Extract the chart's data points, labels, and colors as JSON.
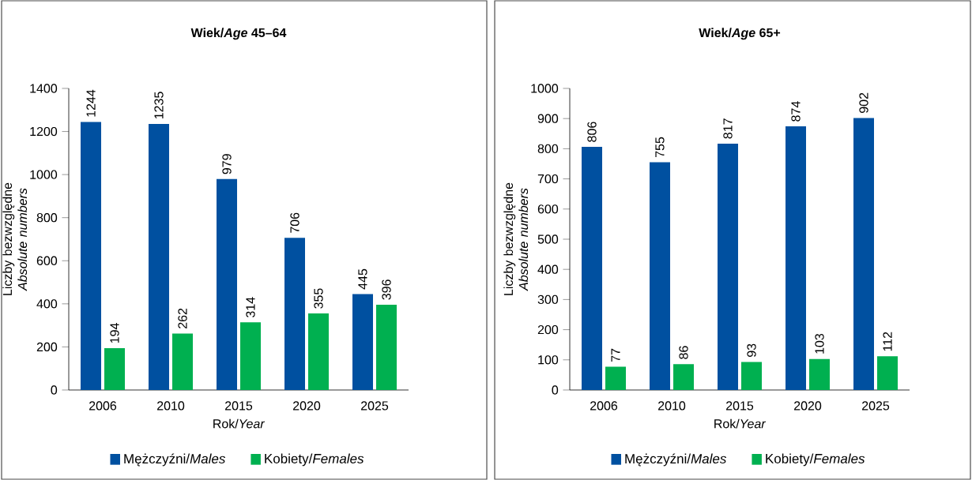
{
  "chart_data": [
    {
      "type": "bar",
      "title": "Wiek/*Age* 45–64",
      "xlabel": "Rok/*Year*",
      "ylabel": "Liczby bezwzględne *Absolute numbers*",
      "categories": [
        "2006",
        "2010",
        "2015",
        "2020",
        "2025"
      ],
      "series": [
        {
          "name": "Mężczyźni/*Males*",
          "color": "#0050a0",
          "values": [
            1244,
            1235,
            979,
            706,
            445
          ]
        },
        {
          "name": "Kobiety/*Females*",
          "color": "#00b050",
          "values": [
            194,
            262,
            314,
            355,
            396
          ]
        }
      ],
      "ylim": [
        0,
        1400
      ],
      "yticks": [
        0,
        200,
        400,
        600,
        800,
        1000,
        1200,
        1400
      ],
      "data_labels": true,
      "legend": "bottom",
      "grid": false
    },
    {
      "type": "bar",
      "title": "Wiek/*Age* 65+",
      "xlabel": "Rok/*Year*",
      "ylabel": "Liczby bezwzględne *Absolute numbers*",
      "categories": [
        "2006",
        "2010",
        "2015",
        "2020",
        "2025"
      ],
      "series": [
        {
          "name": "Mężczyźni/*Males*",
          "color": "#0050a0",
          "values": [
            806,
            755,
            817,
            874,
            902
          ]
        },
        {
          "name": "Kobiety/*Females*",
          "color": "#00b050",
          "values": [
            77,
            86,
            93,
            103,
            112
          ]
        }
      ],
      "ylim": [
        0,
        1000
      ],
      "yticks": [
        0,
        100,
        200,
        300,
        400,
        500,
        600,
        700,
        800,
        900,
        1000
      ],
      "data_labels": true,
      "legend": "bottom",
      "grid": false
    }
  ]
}
